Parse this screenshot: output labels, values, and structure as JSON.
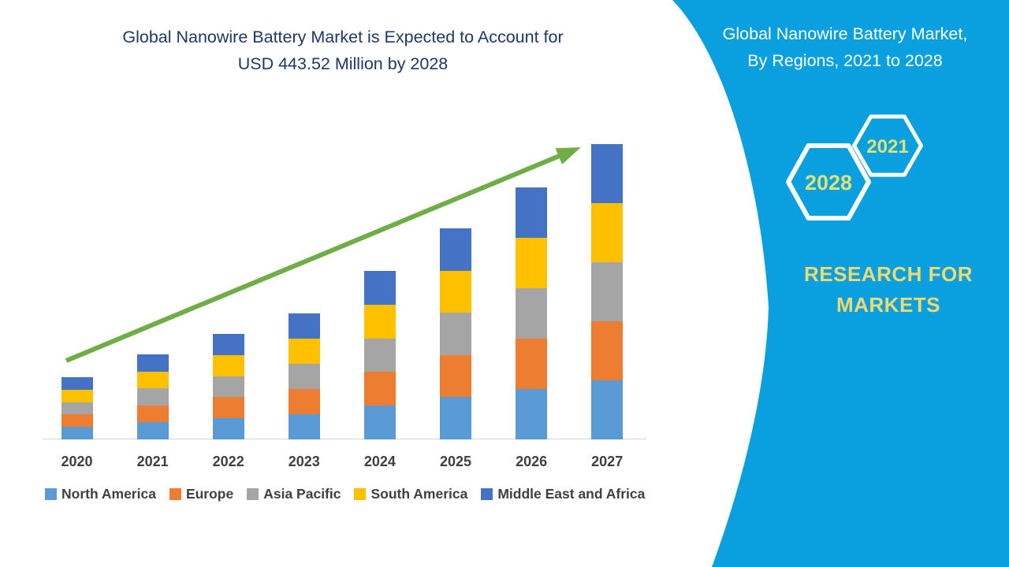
{
  "main_title": {
    "line1": "Global Nanowire Battery Market is Expected to Account for",
    "line2": "USD 443.52 Million by 2028",
    "color": "#1F3864"
  },
  "side_panel": {
    "background_color": "#0A9FDE",
    "title_line1": "Global Nanowire Battery Market,",
    "title_line2": "By Regions, 2021 to 2028",
    "title_color": "#FFFFFF",
    "hexagon_back_label": "2028",
    "hexagon_front_label": "2021",
    "hexagon_border_color": "#FFFFFF",
    "hexagon_label_color": "#DCE276",
    "brand_line1": "RESEARCH FOR",
    "brand_line2": "MARKETS",
    "brand_color": "#F0DA70"
  },
  "chart_data": {
    "type": "bar",
    "stacked": true,
    "title": "Global Nanowire Battery Market is Expected to Account for USD 443.52 Million by 2028",
    "categories": [
      "2020",
      "2021",
      "2022",
      "2023",
      "2024",
      "2025",
      "2026",
      "2027"
    ],
    "series": [
      {
        "name": "North America",
        "color": "#5B9BD5",
        "values": [
          15.8,
          21.6,
          26.8,
          32,
          42.8,
          53.6,
          64,
          75
        ]
      },
      {
        "name": "Europe",
        "color": "#ED7D31",
        "values": [
          15.8,
          21.6,
          26.8,
          32,
          42.8,
          53.6,
          64,
          75
        ]
      },
      {
        "name": "Asia Pacific",
        "color": "#A5A5A5",
        "values": [
          15.8,
          21.6,
          26.8,
          32,
          42.8,
          53.6,
          64,
          75
        ]
      },
      {
        "name": "South America",
        "color": "#FFC000",
        "values": [
          15.8,
          21.6,
          26.8,
          32,
          42.8,
          53.6,
          64,
          75
        ]
      },
      {
        "name": "Middle East and Africa",
        "color": "#4472C4",
        "values": [
          15.8,
          21.6,
          26.8,
          32,
          42.8,
          53.6,
          64,
          75
        ]
      }
    ],
    "totals": [
      79,
      108,
      134,
      160,
      214,
      268,
      320,
      375
    ],
    "units": "relative height index (no y-axis shown); headline value USD 443.52 Million by 2028",
    "ylabel": "",
    "xlabel": "",
    "grid": false,
    "legend_position": "bottom",
    "tick_label_color": "#404040",
    "axis_line_color": "#D6D6D6",
    "trend_arrow": {
      "present": true,
      "color": "#6FAE46",
      "direction": "up-right"
    }
  }
}
